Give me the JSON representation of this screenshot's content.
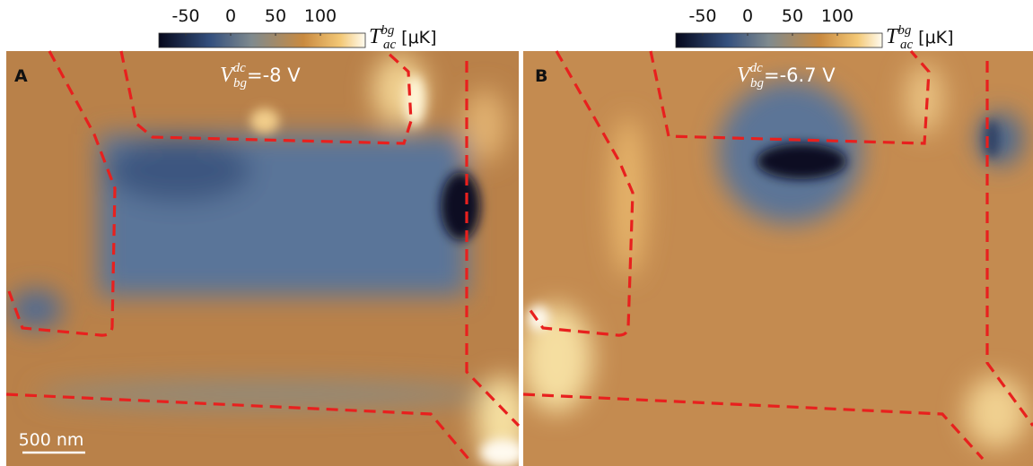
{
  "panels": [
    {
      "label": "A",
      "colorbar": {
        "ticks": [
          -50,
          0,
          50,
          100
        ],
        "range": [
          -80,
          150
        ],
        "symbol": "T",
        "subscript": "ac",
        "superscript": "bg",
        "unit": "[μK]"
      },
      "gate": {
        "symbol": "V",
        "superscript": "dc",
        "subscript": "bg",
        "value": "=-8 V"
      },
      "scale_bar": "500 nm"
    },
    {
      "label": "B",
      "colorbar": {
        "ticks": [
          -50,
          0,
          50,
          100
        ],
        "range": [
          -80,
          150
        ],
        "symbol": "T",
        "subscript": "ac",
        "superscript": "bg",
        "unit": "[μK]"
      },
      "gate": {
        "symbol": "V",
        "superscript": "dc",
        "subscript": "bg",
        "value": "=-6.7 V"
      }
    }
  ]
}
